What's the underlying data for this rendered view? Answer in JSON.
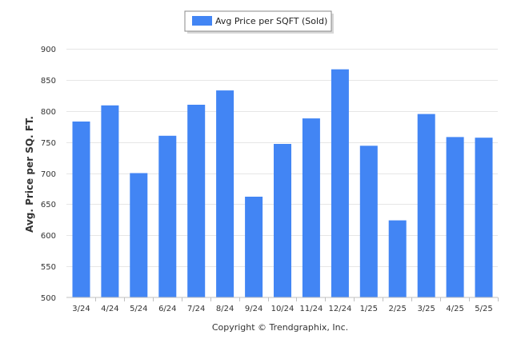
{
  "colors": {
    "bar": "#4285F4",
    "grid": "#e6e6e6",
    "axis": "#c0c0c0",
    "text": "#333333"
  },
  "chart_data": {
    "type": "bar",
    "categories": [
      "3/24",
      "4/24",
      "5/24",
      "6/24",
      "7/24",
      "8/24",
      "9/24",
      "10/24",
      "11/24",
      "12/24",
      "1/25",
      "2/25",
      "3/25",
      "4/25",
      "5/25"
    ],
    "series": [
      {
        "name": "Avg Price per SQFT (Sold)",
        "values": [
          783,
          809,
          700,
          760,
          810,
          833,
          662,
          747,
          788,
          867,
          744,
          624,
          795,
          758,
          757
        ]
      }
    ],
    "ylabel": "Avg. Price per SQ. FT.",
    "xlabel": "",
    "ylim": [
      500,
      900
    ],
    "yticks": [
      500,
      550,
      600,
      650,
      700,
      750,
      800,
      850,
      900
    ],
    "grid": true,
    "legend_position": "top-center"
  },
  "footer": {
    "copyright": "Copyright © Trendgraphix, Inc."
  }
}
